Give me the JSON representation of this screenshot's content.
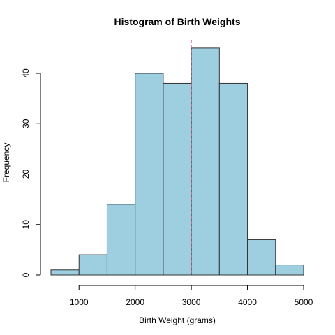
{
  "chart_data": {
    "type": "bar",
    "subtype": "histogram",
    "title": "Histogram of Birth Weights",
    "xlabel": "Birth Weight (grams)",
    "ylabel": "Frequency",
    "bins": [
      {
        "start": 500,
        "end": 1000,
        "count": 1
      },
      {
        "start": 1000,
        "end": 1500,
        "count": 4
      },
      {
        "start": 1500,
        "end": 2000,
        "count": 14
      },
      {
        "start": 2000,
        "end": 2500,
        "count": 40
      },
      {
        "start": 2500,
        "end": 3000,
        "count": 38
      },
      {
        "start": 3000,
        "end": 3500,
        "count": 45
      },
      {
        "start": 3500,
        "end": 4000,
        "count": 38
      },
      {
        "start": 4000,
        "end": 4500,
        "count": 7
      },
      {
        "start": 4500,
        "end": 5000,
        "count": 2
      }
    ],
    "xlim": [
      500,
      5000
    ],
    "ylim": [
      0,
      45
    ],
    "x_ticks": [
      "1000",
      "2000",
      "3000",
      "4000",
      "5000"
    ],
    "y_ticks": [
      "0",
      "10",
      "20",
      "30",
      "40"
    ],
    "reference_line": {
      "x": 3000,
      "style": "dashed",
      "color": "#d94f6e"
    },
    "bar_fill": "#9ecfe0",
    "bar_stroke": "#333333",
    "grid": false,
    "legend": "none"
  }
}
